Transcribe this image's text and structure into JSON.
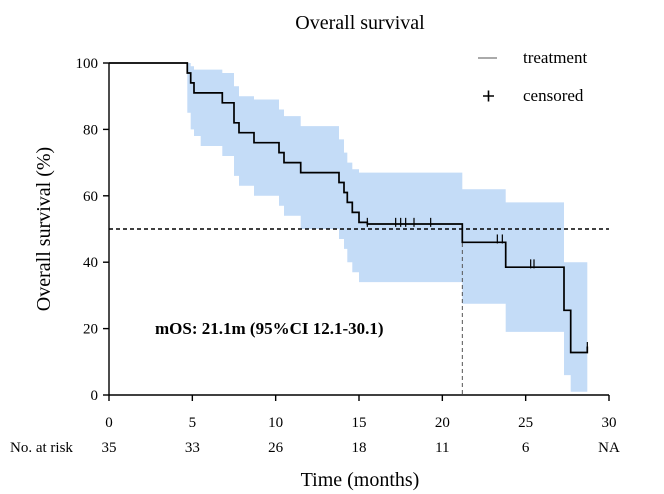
{
  "chart_data": {
    "type": "line",
    "title": "Overall survival",
    "xlabel": "Time (months)",
    "ylabel": "Overall survival (%)",
    "xlim": [
      0,
      30
    ],
    "ylim": [
      0,
      100
    ],
    "xticks": [
      0,
      5,
      10,
      15,
      20,
      25,
      30
    ],
    "yticks": [
      0,
      20,
      40,
      60,
      80,
      100
    ],
    "grid": false,
    "legend_position": "top-right",
    "legend": [
      {
        "label": "treatment",
        "marker": "line"
      },
      {
        "label": "censored",
        "marker": "plus"
      }
    ],
    "series": [
      {
        "name": "treatment",
        "step": true,
        "x": [
          0,
          4.7,
          4.9,
          5.1,
          5.5,
          6.8,
          7.5,
          7.8,
          8.7,
          10.2,
          10.5,
          11.5,
          13.8,
          14.1,
          14.3,
          14.6,
          15.0,
          15.5,
          21.2,
          23.8,
          27.3,
          27.7,
          28.7
        ],
        "y": [
          100,
          97,
          94,
          91,
          91,
          88,
          82,
          79,
          76,
          73,
          70,
          67,
          64,
          61,
          58,
          55,
          52,
          51.5,
          46,
          38.5,
          25.5,
          12.8,
          14.6
        ],
        "color": "#000000"
      }
    ],
    "ci": {
      "x": [
        0,
        4.7,
        4.9,
        5.1,
        5.5,
        6.8,
        7.5,
        7.8,
        8.7,
        10.2,
        10.5,
        11.5,
        13.8,
        14.1,
        14.3,
        14.6,
        15.0,
        15.5,
        21.2,
        23.8,
        27.3,
        27.7,
        28.7
      ],
      "lower": [
        100,
        85,
        80,
        78,
        75,
        72,
        66,
        63,
        60,
        57,
        54,
        50,
        47,
        44,
        40,
        37,
        34,
        34,
        27.5,
        19,
        6,
        1,
        1
      ],
      "upper": [
        100,
        100,
        99,
        98,
        98,
        97,
        93,
        90,
        89,
        86,
        84,
        81,
        77,
        73,
        70,
        68,
        67,
        67,
        62,
        58,
        40,
        40,
        40
      ],
      "color": "#c4dcf7"
    },
    "censored": [
      {
        "x": 15.5,
        "y": 52
      },
      {
        "x": 17.2,
        "y": 52
      },
      {
        "x": 17.5,
        "y": 52
      },
      {
        "x": 17.8,
        "y": 52
      },
      {
        "x": 18.3,
        "y": 52
      },
      {
        "x": 19.3,
        "y": 52
      },
      {
        "x": 23.3,
        "y": 47
      },
      {
        "x": 23.6,
        "y": 47
      },
      {
        "x": 25.3,
        "y": 39.5
      },
      {
        "x": 25.5,
        "y": 39.5
      },
      {
        "x": 28.7,
        "y": 14.6
      }
    ],
    "reference_line_y": 50,
    "median_marker_x": 21.2,
    "annotation": "mOS: 21.1m (95%CI 12.1-30.1)",
    "risk_table": {
      "label": "No. at risk",
      "x": [
        0,
        5,
        10,
        15,
        20,
        25,
        30
      ],
      "values": [
        "35",
        "33",
        "26",
        "18",
        "11",
        "6",
        "NA"
      ]
    }
  }
}
